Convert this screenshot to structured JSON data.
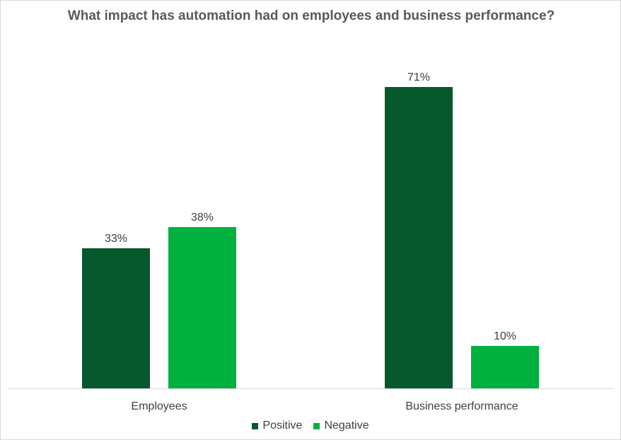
{
  "chart_data": {
    "type": "bar",
    "title": "What impact has automation had on employees and business performance?",
    "categories": [
      "Employees",
      "Business performance"
    ],
    "series": [
      {
        "name": "Positive",
        "values": [
          33,
          71
        ],
        "color": "#06582D"
      },
      {
        "name": "Negative",
        "values": [
          38,
          10
        ],
        "color": "#00B140"
      }
    ],
    "value_format": "percent",
    "ylim": [
      0,
      75
    ],
    "grid": false,
    "legend": "bottom",
    "axis_color": "#D9D9D9",
    "text_color": "#404040"
  }
}
